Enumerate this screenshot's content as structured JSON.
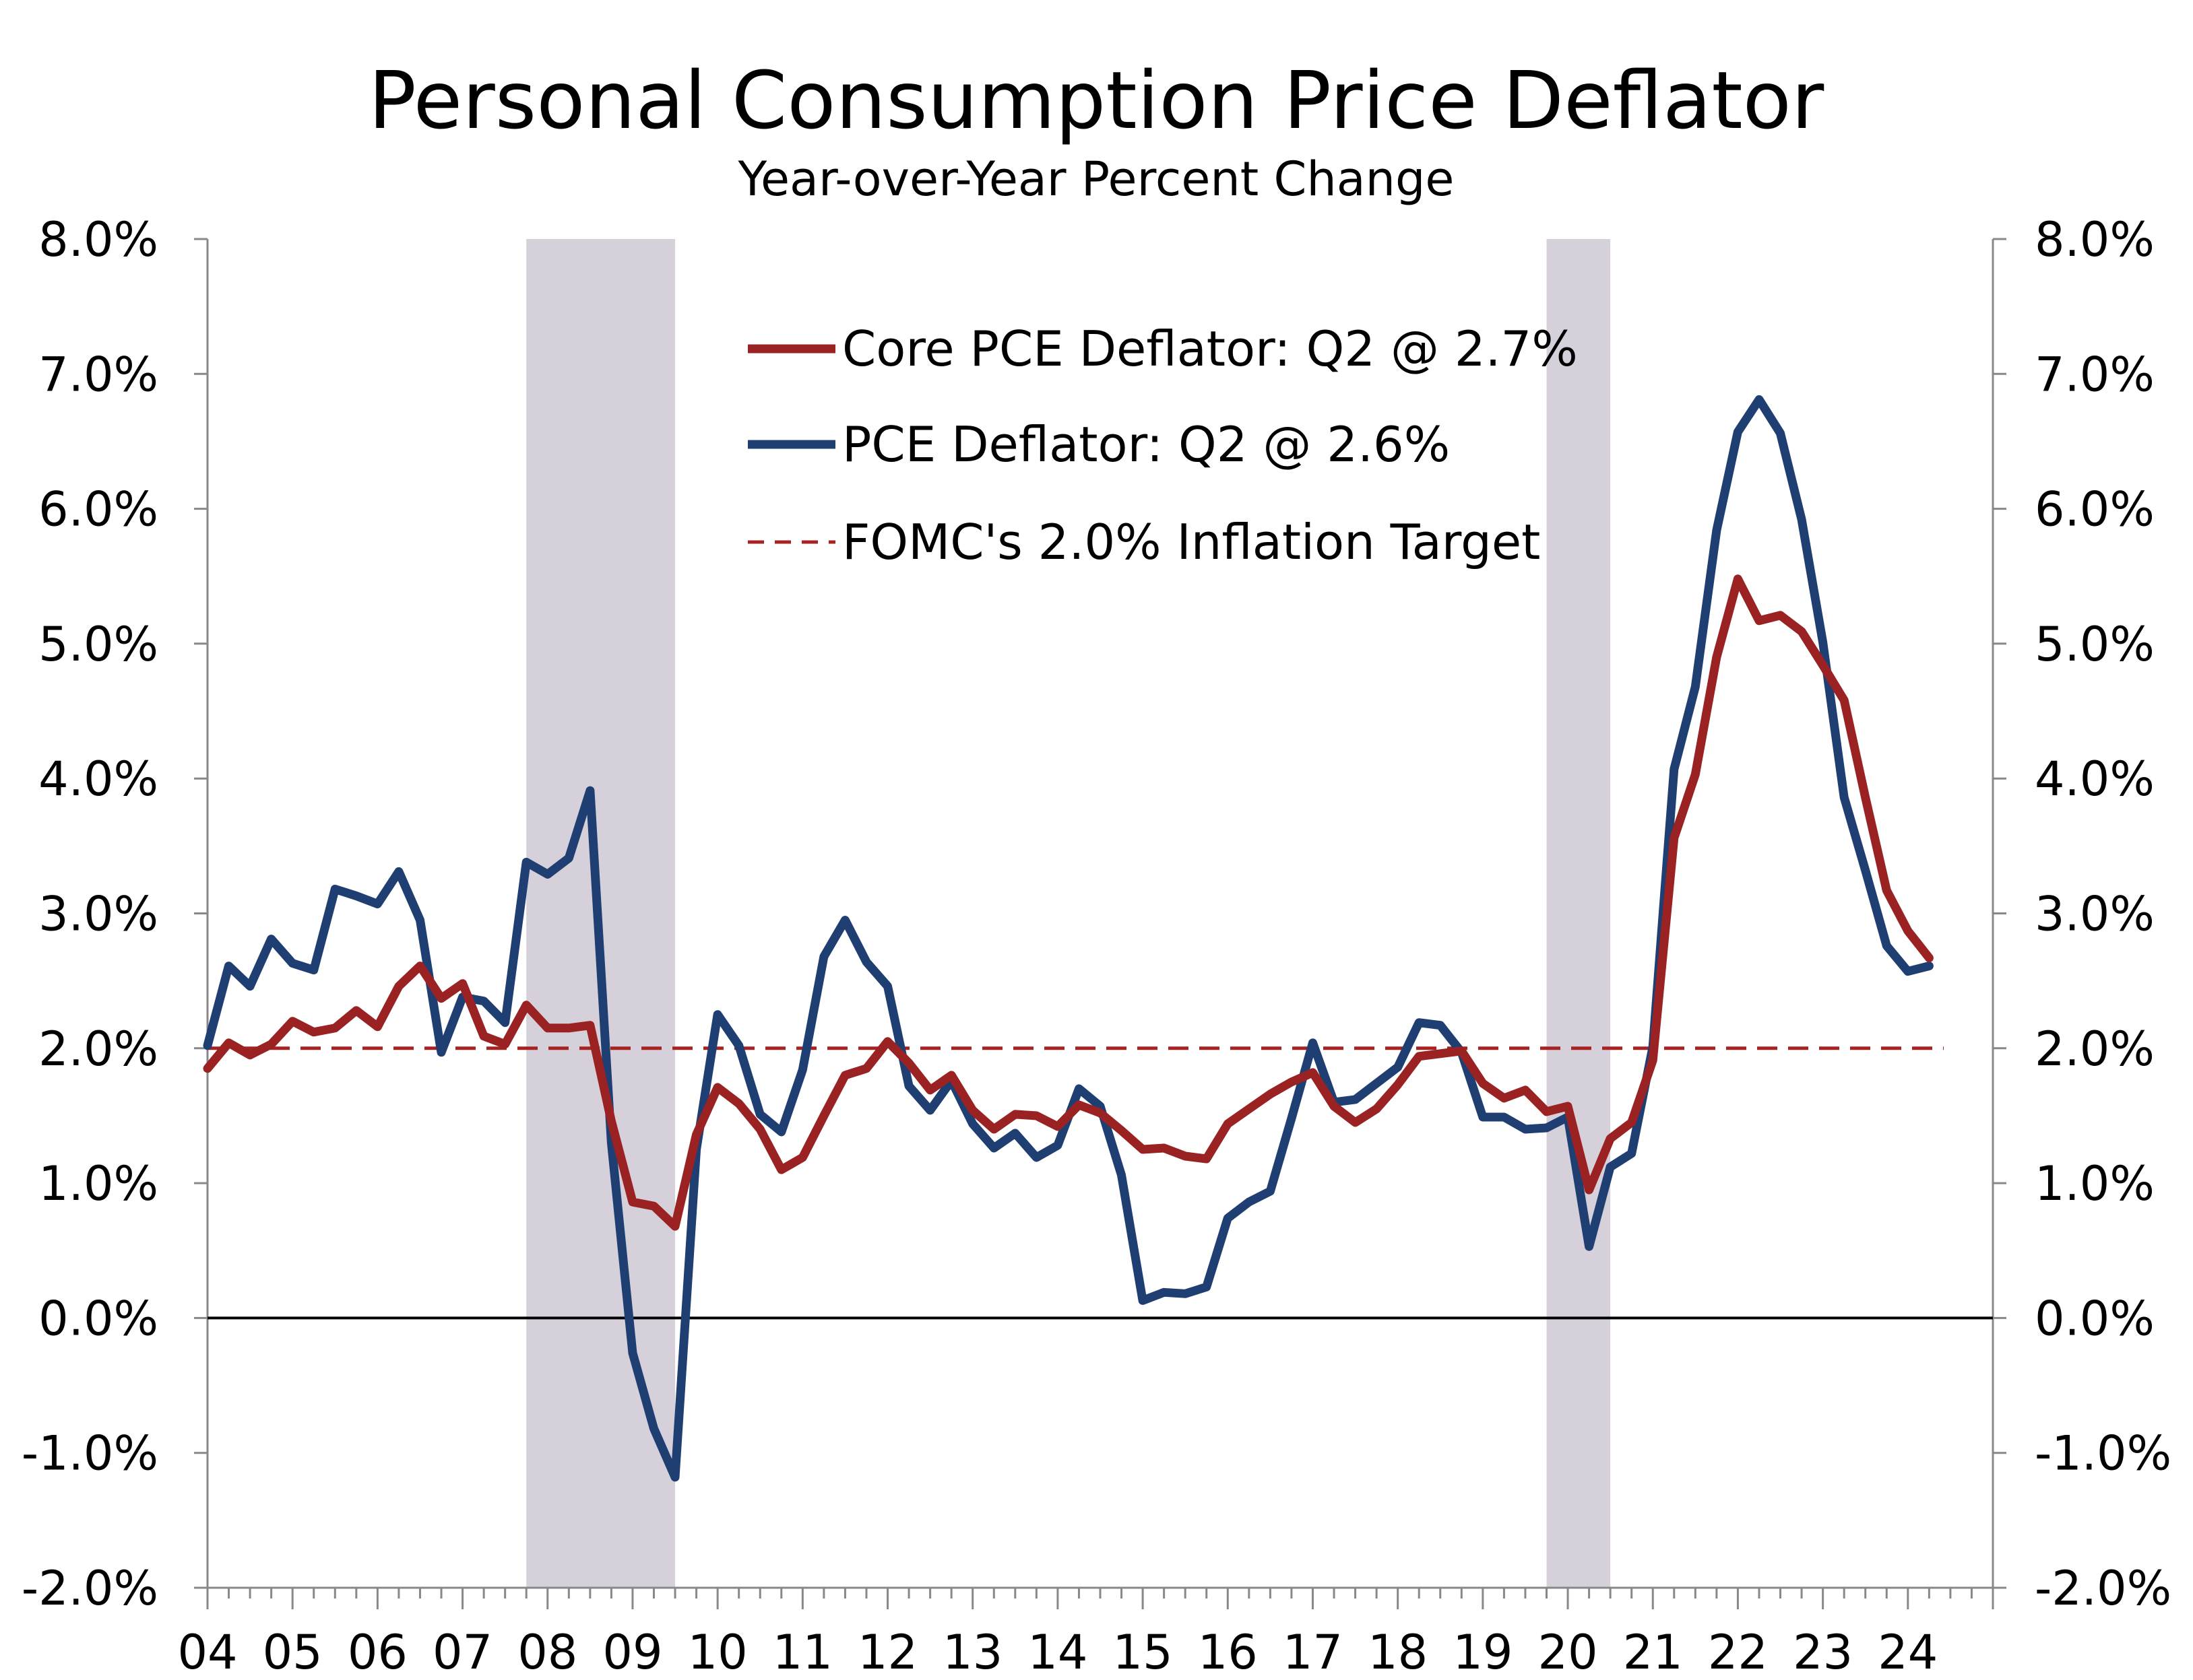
{
  "chart_data": {
    "type": "line",
    "title": "Personal Consumption Price Deflator",
    "subtitle": "Year-over-Year Percent Change",
    "ylim": [
      -2.0,
      8.0
    ],
    "y_ticks": [
      "-2.0%",
      "-1.0%",
      "0.0%",
      "1.0%",
      "2.0%",
      "3.0%",
      "4.0%",
      "5.0%",
      "6.0%",
      "7.0%",
      "8.0%"
    ],
    "y_ticks_right": [
      "-2.0%",
      "-1.0%",
      "0.0%",
      "1.0%",
      "2.0%",
      "3.0%",
      "4.0%",
      "5.0%",
      "6.0%",
      "7.0%",
      "8.0%"
    ],
    "x_ticks": [
      "04",
      "05",
      "06",
      "07",
      "08",
      "09",
      "10",
      "11",
      "12",
      "13",
      "14",
      "15",
      "16",
      "17",
      "18",
      "19",
      "20",
      "21",
      "22",
      "23",
      "24"
    ],
    "x_start": "2004 Q1",
    "frequency": "quarterly",
    "recessions": [
      {
        "start": "2007 Q4",
        "end": "2009 Q2"
      },
      {
        "start": "2019 Q4",
        "end": "2020 Q2"
      }
    ],
    "reference_line": {
      "name": "FOMC's 2.0% Inflation Target",
      "value": 2.0,
      "color": "#a82222"
    },
    "series": [
      {
        "name": "Core PCE Deflator: Q2 @ 2.7%",
        "color": "#9a2222",
        "values": [
          1.85,
          2.04,
          1.95,
          2.03,
          2.2,
          2.12,
          2.15,
          2.28,
          2.16,
          2.46,
          2.61,
          2.37,
          2.48,
          2.09,
          2.03,
          2.32,
          2.15,
          2.15,
          2.17,
          1.46,
          0.86,
          0.83,
          0.68,
          1.36,
          1.71,
          1.59,
          1.4,
          1.1,
          1.19,
          1.5,
          1.8,
          1.85,
          2.05,
          1.89,
          1.69,
          1.8,
          1.54,
          1.4,
          1.51,
          1.5,
          1.42,
          1.58,
          1.52,
          1.39,
          1.25,
          1.26,
          1.2,
          1.18,
          1.44,
          1.55,
          1.66,
          1.75,
          1.82,
          1.57,
          1.45,
          1.55,
          1.73,
          1.94,
          1.96,
          1.98,
          1.74,
          1.63,
          1.69,
          1.53,
          1.57,
          0.95,
          1.33,
          1.45,
          1.91,
          3.56,
          4.03,
          4.9,
          5.48,
          5.17,
          5.21,
          5.09,
          4.84,
          4.58,
          3.86,
          3.17,
          2.87,
          2.67
        ]
      },
      {
        "name": "PCE Deflator: Q2 @ 2.6%",
        "color": "#1f3f73",
        "values": [
          2.02,
          2.61,
          2.46,
          2.81,
          2.63,
          2.58,
          3.18,
          3.13,
          3.07,
          3.31,
          2.95,
          1.97,
          2.38,
          2.35,
          2.19,
          3.38,
          3.29,
          3.41,
          3.91,
          1.3,
          -0.26,
          -0.82,
          -1.18,
          1.25,
          2.25,
          2.02,
          1.51,
          1.38,
          1.84,
          2.68,
          2.95,
          2.64,
          2.46,
          1.72,
          1.54,
          1.76,
          1.44,
          1.26,
          1.37,
          1.19,
          1.28,
          1.7,
          1.57,
          1.06,
          0.13,
          0.19,
          0.18,
          0.23,
          0.74,
          0.86,
          0.94,
          1.48,
          2.04,
          1.6,
          1.62,
          1.74,
          1.86,
          2.19,
          2.17,
          1.97,
          1.49,
          1.49,
          1.4,
          1.41,
          1.49,
          0.53,
          1.12,
          1.22,
          2.01,
          4.07,
          4.68,
          5.84,
          6.57,
          6.81,
          6.56,
          5.92,
          5.01,
          3.86,
          3.32,
          2.76,
          2.57,
          2.61
        ]
      }
    ],
    "legend_position": "top-center"
  },
  "colors": {
    "core_pce": "#9a2222",
    "pce": "#1f3f73",
    "target": "#a82222",
    "recession_shade": "#d5d0d9",
    "axis": "#888888",
    "zero_line": "#000000"
  }
}
